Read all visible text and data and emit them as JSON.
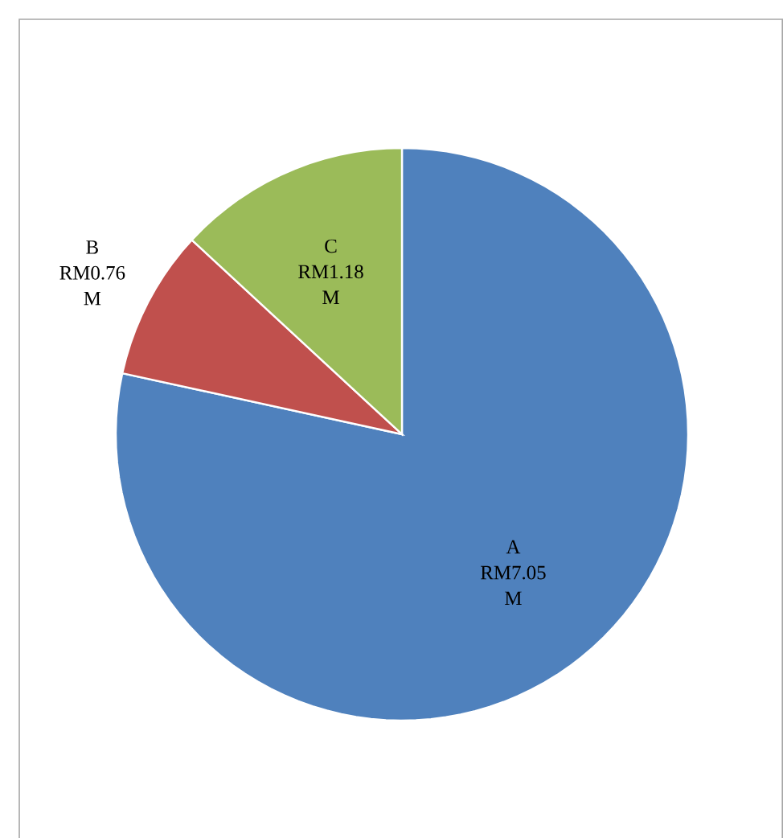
{
  "chart_data": {
    "type": "pie",
    "categories": [
      "A",
      "B",
      "C"
    ],
    "values": [
      7.05,
      0.76,
      1.18
    ],
    "value_labels": [
      "RM7.05 M",
      "RM0.76 M",
      "RM1.18 M"
    ],
    "colors": [
      "#4f81bd",
      "#c0504d",
      "#9bbb59"
    ]
  }
}
